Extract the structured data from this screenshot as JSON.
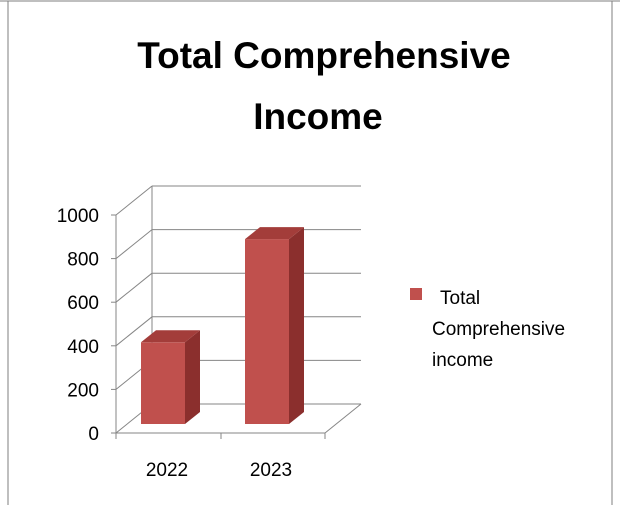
{
  "chart_data": {
    "type": "bar",
    "title_lines": [
      "Total Comprehensive",
      "Income"
    ],
    "categories": [
      "2022",
      "2023"
    ],
    "series": [
      {
        "name_lines": [
          "Total",
          "Comprehensive",
          "income"
        ],
        "values": [
          380,
          860
        ],
        "color": "#c0504d",
        "side_color": "#8b2f2d",
        "top_color": "#a33d3a"
      }
    ],
    "ylim": [
      0,
      1000
    ],
    "yticks": [
      "0",
      "200",
      "400",
      "600",
      "800",
      "1000"
    ],
    "grid": true,
    "three_d": true,
    "legend_position": "right"
  }
}
